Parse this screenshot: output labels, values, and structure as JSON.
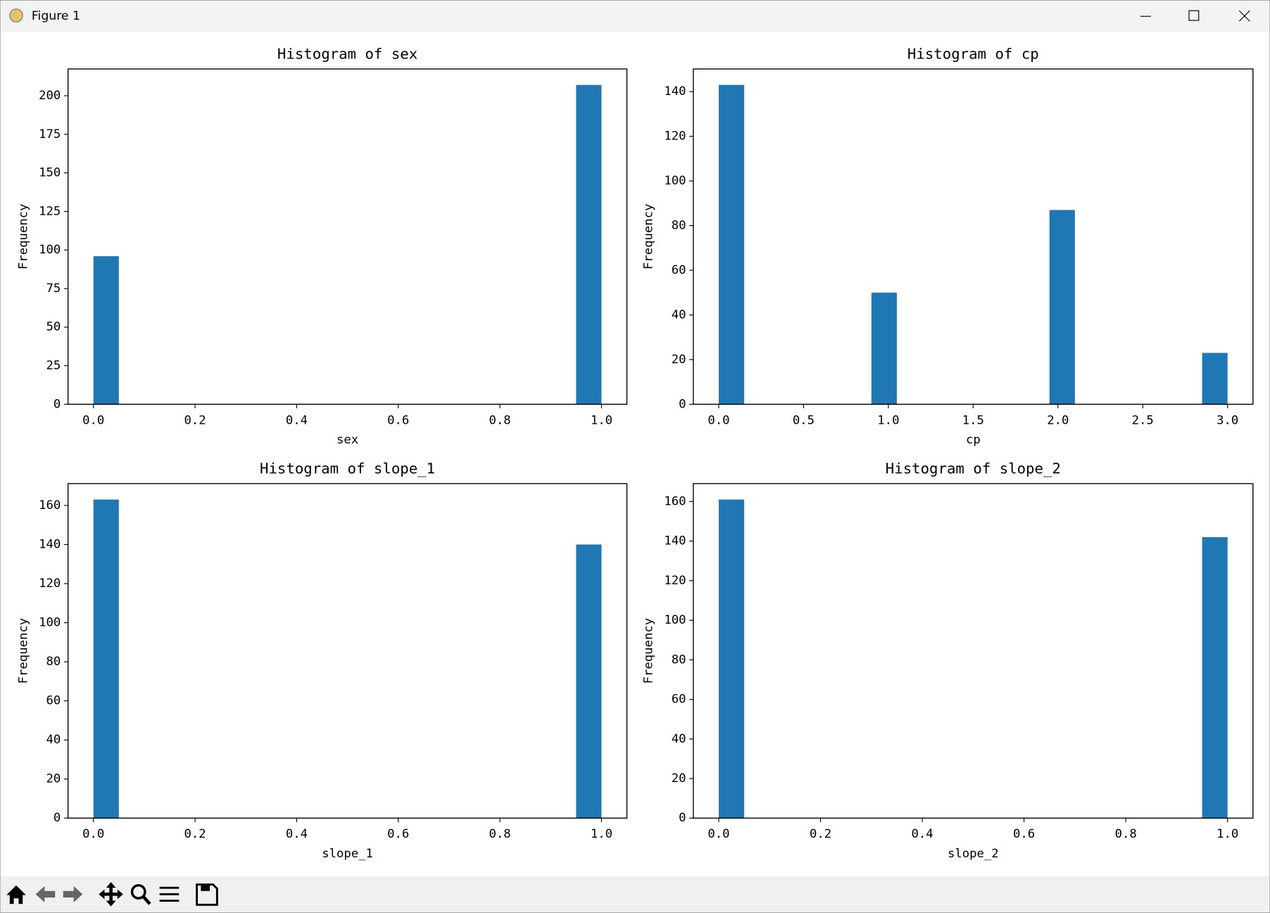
{
  "window": {
    "title": "Figure 1"
  },
  "chart_data": [
    {
      "type": "histogram",
      "title": "Histogram of sex",
      "xlabel": "sex",
      "ylabel": "Frequency",
      "color": "#1f77b4",
      "bins": [
        0,
        0.05,
        0.1,
        0.15,
        0.2,
        0.25,
        0.3,
        0.35,
        0.4,
        0.45,
        0.5,
        0.55,
        0.6,
        0.65,
        0.7,
        0.75,
        0.8,
        0.85,
        0.9,
        0.95,
        1
      ],
      "values": [
        96,
        0,
        0,
        0,
        0,
        0,
        0,
        0,
        0,
        0,
        0,
        0,
        0,
        0,
        0,
        0,
        0,
        0,
        0,
        207
      ],
      "xlim": [
        -0.05,
        1.05
      ],
      "ylim": [
        0,
        217.35
      ],
      "xticks": [
        {
          "value": 0,
          "label": "0.0"
        },
        0.2,
        0.4,
        0.6,
        0.8,
        {
          "value": 1,
          "label": "1.0"
        }
      ],
      "yticks": [
        0,
        25,
        50,
        75,
        100,
        125,
        150,
        175,
        200
      ]
    },
    {
      "type": "histogram",
      "title": "Histogram of cp",
      "xlabel": "cp",
      "ylabel": "Frequency",
      "color": "#1f77b4",
      "bins": [
        0,
        0.15,
        0.3,
        0.45,
        0.6,
        0.75,
        0.9,
        1.05,
        1.2,
        1.35,
        1.5,
        1.65,
        1.8,
        1.95,
        2.1,
        2.25,
        2.4,
        2.55,
        2.7,
        2.85,
        3
      ],
      "values": [
        143,
        0,
        0,
        0,
        0,
        0,
        50,
        0,
        0,
        0,
        0,
        0,
        0,
        87,
        0,
        0,
        0,
        0,
        0,
        23
      ],
      "xlim": [
        -0.15,
        3.15
      ],
      "ylim": [
        0,
        150.15
      ],
      "xticks": [
        {
          "value": 0,
          "label": "0.0"
        },
        0.5,
        {
          "value": 1,
          "label": "1.0"
        },
        1.5,
        {
          "value": 2,
          "label": "2.0"
        },
        2.5,
        {
          "value": 3,
          "label": "3.0"
        }
      ],
      "yticks": [
        0,
        20,
        40,
        60,
        80,
        100,
        120,
        140
      ]
    },
    {
      "type": "histogram",
      "title": "Histogram of slope_1",
      "xlabel": "slope_1",
      "ylabel": "Frequency",
      "color": "#1f77b4",
      "bins": [
        0,
        0.05,
        0.1,
        0.15,
        0.2,
        0.25,
        0.3,
        0.35,
        0.4,
        0.45,
        0.5,
        0.55,
        0.6,
        0.65,
        0.7,
        0.75,
        0.8,
        0.85,
        0.9,
        0.95,
        1
      ],
      "values": [
        163,
        0,
        0,
        0,
        0,
        0,
        0,
        0,
        0,
        0,
        0,
        0,
        0,
        0,
        0,
        0,
        0,
        0,
        0,
        140
      ],
      "xlim": [
        -0.05,
        1.05
      ],
      "ylim": [
        0,
        171.15
      ],
      "xticks": [
        {
          "value": 0,
          "label": "0.0"
        },
        0.2,
        0.4,
        0.6,
        0.8,
        {
          "value": 1,
          "label": "1.0"
        }
      ],
      "yticks": [
        0,
        20,
        40,
        60,
        80,
        100,
        120,
        140,
        160
      ]
    },
    {
      "type": "histogram",
      "title": "Histogram of slope_2",
      "xlabel": "slope_2",
      "ylabel": "Frequency",
      "color": "#1f77b4",
      "bins": [
        0,
        0.05,
        0.1,
        0.15,
        0.2,
        0.25,
        0.3,
        0.35,
        0.4,
        0.45,
        0.5,
        0.55,
        0.6,
        0.65,
        0.7,
        0.75,
        0.8,
        0.85,
        0.9,
        0.95,
        1
      ],
      "values": [
        161,
        0,
        0,
        0,
        0,
        0,
        0,
        0,
        0,
        0,
        0,
        0,
        0,
        0,
        0,
        0,
        0,
        0,
        0,
        142
      ],
      "xlim": [
        -0.05,
        1.05
      ],
      "ylim": [
        0,
        169.05
      ],
      "xticks": [
        {
          "value": 0,
          "label": "0.0"
        },
        0.2,
        0.4,
        0.6,
        0.8,
        {
          "value": 1,
          "label": "1.0"
        }
      ],
      "yticks": [
        0,
        20,
        40,
        60,
        80,
        100,
        120,
        140,
        160
      ]
    }
  ]
}
